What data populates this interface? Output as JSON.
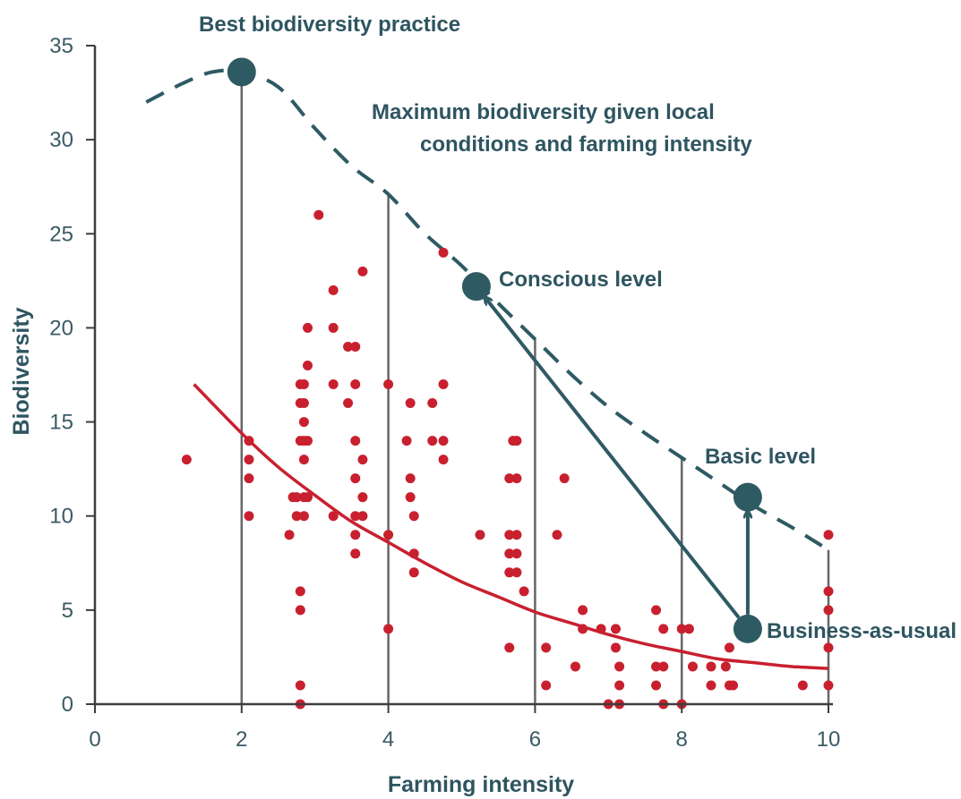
{
  "chart_data": {
    "type": "scatter",
    "xlabel": "Farming intensity",
    "ylabel": "Biodiversity",
    "xlim": [
      0,
      10
    ],
    "ylim": [
      0,
      35
    ],
    "x_ticks": [
      "0",
      "2",
      "4",
      "6",
      "8",
      "10"
    ],
    "y_ticks": [
      "0",
      "5",
      "10",
      "15",
      "20",
      "25",
      "30",
      "35"
    ],
    "grid": false,
    "colors": {
      "points": "#c8202f",
      "trend": "#c8202f",
      "frontier": "#2e5a63",
      "vlines": "#666666",
      "text": "#2e5560"
    },
    "points": [
      [
        1.25,
        13
      ],
      [
        2.1,
        14
      ],
      [
        2.1,
        13
      ],
      [
        2.1,
        12
      ],
      [
        2.1,
        10
      ],
      [
        2.65,
        9
      ],
      [
        2.7,
        11
      ],
      [
        2.75,
        10
      ],
      [
        2.75,
        11
      ],
      [
        2.8,
        17
      ],
      [
        2.8,
        16
      ],
      [
        2.8,
        14
      ],
      [
        2.8,
        6
      ],
      [
        2.8,
        5
      ],
      [
        2.8,
        1
      ],
      [
        2.8,
        0
      ],
      [
        2.85,
        17
      ],
      [
        2.85,
        16
      ],
      [
        2.85,
        15
      ],
      [
        2.85,
        14
      ],
      [
        2.85,
        13
      ],
      [
        2.85,
        11
      ],
      [
        2.85,
        10
      ],
      [
        2.9,
        20
      ],
      [
        2.9,
        18
      ],
      [
        2.9,
        14
      ],
      [
        2.9,
        11
      ],
      [
        3.05,
        26
      ],
      [
        3.25,
        22
      ],
      [
        3.25,
        20
      ],
      [
        3.25,
        17
      ],
      [
        3.25,
        10
      ],
      [
        3.45,
        19
      ],
      [
        3.45,
        16
      ],
      [
        3.55,
        19
      ],
      [
        3.55,
        17
      ],
      [
        3.55,
        14
      ],
      [
        3.55,
        12
      ],
      [
        3.55,
        10
      ],
      [
        3.55,
        9
      ],
      [
        3.55,
        8
      ],
      [
        3.65,
        23
      ],
      [
        3.65,
        13
      ],
      [
        3.65,
        11
      ],
      [
        3.65,
        10
      ],
      [
        4.0,
        17
      ],
      [
        4.0,
        9
      ],
      [
        4.0,
        4
      ],
      [
        4.25,
        14
      ],
      [
        4.3,
        16
      ],
      [
        4.3,
        12
      ],
      [
        4.3,
        11
      ],
      [
        4.35,
        10
      ],
      [
        4.35,
        8
      ],
      [
        4.35,
        7
      ],
      [
        4.6,
        16
      ],
      [
        4.6,
        14
      ],
      [
        4.75,
        24
      ],
      [
        4.75,
        17
      ],
      [
        4.75,
        14
      ],
      [
        4.75,
        13
      ],
      [
        5.25,
        9
      ],
      [
        5.65,
        12
      ],
      [
        5.65,
        9
      ],
      [
        5.65,
        8
      ],
      [
        5.65,
        7
      ],
      [
        5.65,
        3
      ],
      [
        5.7,
        14
      ],
      [
        5.75,
        14
      ],
      [
        5.75,
        12
      ],
      [
        5.75,
        9
      ],
      [
        5.75,
        8
      ],
      [
        5.75,
        7
      ],
      [
        5.85,
        6
      ],
      [
        6.15,
        3
      ],
      [
        6.15,
        1
      ],
      [
        6.3,
        9
      ],
      [
        6.4,
        12
      ],
      [
        6.55,
        2
      ],
      [
        6.65,
        5
      ],
      [
        6.65,
        4
      ],
      [
        6.9,
        4
      ],
      [
        7.0,
        0
      ],
      [
        7.1,
        4
      ],
      [
        7.1,
        3
      ],
      [
        7.15,
        2
      ],
      [
        7.15,
        1
      ],
      [
        7.15,
        0
      ],
      [
        7.65,
        5
      ],
      [
        7.65,
        2
      ],
      [
        7.65,
        1
      ],
      [
        7.75,
        4
      ],
      [
        7.75,
        2
      ],
      [
        7.75,
        0
      ],
      [
        8.0,
        4
      ],
      [
        8.0,
        0
      ],
      [
        8.1,
        4
      ],
      [
        8.15,
        2
      ],
      [
        8.4,
        2
      ],
      [
        8.4,
        1
      ],
      [
        8.6,
        2
      ],
      [
        8.65,
        3
      ],
      [
        8.65,
        1
      ],
      [
        8.7,
        1
      ],
      [
        9.65,
        1
      ],
      [
        10.0,
        9
      ],
      [
        10.0,
        6
      ],
      [
        10.0,
        5
      ],
      [
        10.0,
        3
      ],
      [
        10.0,
        1
      ]
    ],
    "trend_line": [
      [
        1.35,
        17.0
      ],
      [
        2.0,
        14.4
      ],
      [
        2.5,
        12.6
      ],
      [
        3.0,
        11.1
      ],
      [
        3.5,
        9.7
      ],
      [
        4.0,
        8.6
      ],
      [
        4.5,
        7.5
      ],
      [
        5.0,
        6.5
      ],
      [
        5.5,
        5.7
      ],
      [
        6.0,
        4.9
      ],
      [
        6.5,
        4.3
      ],
      [
        7.0,
        3.7
      ],
      [
        7.5,
        3.2
      ],
      [
        8.0,
        2.8
      ],
      [
        8.5,
        2.4
      ],
      [
        9.0,
        2.2
      ],
      [
        9.5,
        2.0
      ],
      [
        10.0,
        1.9
      ]
    ],
    "frontier_line": [
      [
        0.7,
        32.0
      ],
      [
        1.2,
        33.0
      ],
      [
        1.6,
        33.6
      ],
      [
        2.0,
        33.6
      ],
      [
        2.5,
        32.8
      ],
      [
        3.0,
        30.6
      ],
      [
        3.5,
        28.6
      ],
      [
        4.0,
        27.1
      ],
      [
        4.5,
        25.0
      ],
      [
        5.0,
        23.3
      ],
      [
        5.5,
        21.3
      ],
      [
        6.0,
        19.4
      ],
      [
        6.5,
        17.5
      ],
      [
        7.0,
        15.8
      ],
      [
        7.5,
        14.4
      ],
      [
        8.0,
        13.1
      ],
      [
        8.5,
        11.8
      ],
      [
        9.0,
        10.5
      ],
      [
        9.5,
        9.4
      ],
      [
        10.0,
        8.2
      ]
    ],
    "vertical_lines": [
      {
        "x": 2,
        "top": 33.6
      },
      {
        "x": 4,
        "top": 27.1
      },
      {
        "x": 6,
        "top": 19.5
      },
      {
        "x": 8,
        "top": 13.1
      },
      {
        "x": 10,
        "top": 8.2
      }
    ],
    "key_points": [
      {
        "name": "best",
        "x": 2.0,
        "y": 33.6,
        "label": "Best biodiversity practice"
      },
      {
        "name": "conscious",
        "x": 5.2,
        "y": 22.2,
        "label": "Conscious level"
      },
      {
        "name": "basic",
        "x": 8.9,
        "y": 11.0,
        "label": "Basic level"
      },
      {
        "name": "business",
        "x": 8.9,
        "y": 4.0,
        "label": "Business-as-usual"
      }
    ],
    "arrows": [
      {
        "from": [
          8.9,
          4.0
        ],
        "to": [
          5.2,
          22.2
        ]
      },
      {
        "from": [
          8.9,
          4.0
        ],
        "to": [
          8.9,
          11.0
        ]
      }
    ],
    "annotations": {
      "frontier_line1": "Maximum biodiversity given local",
      "frontier_line2": "conditions and farming intensity"
    }
  }
}
